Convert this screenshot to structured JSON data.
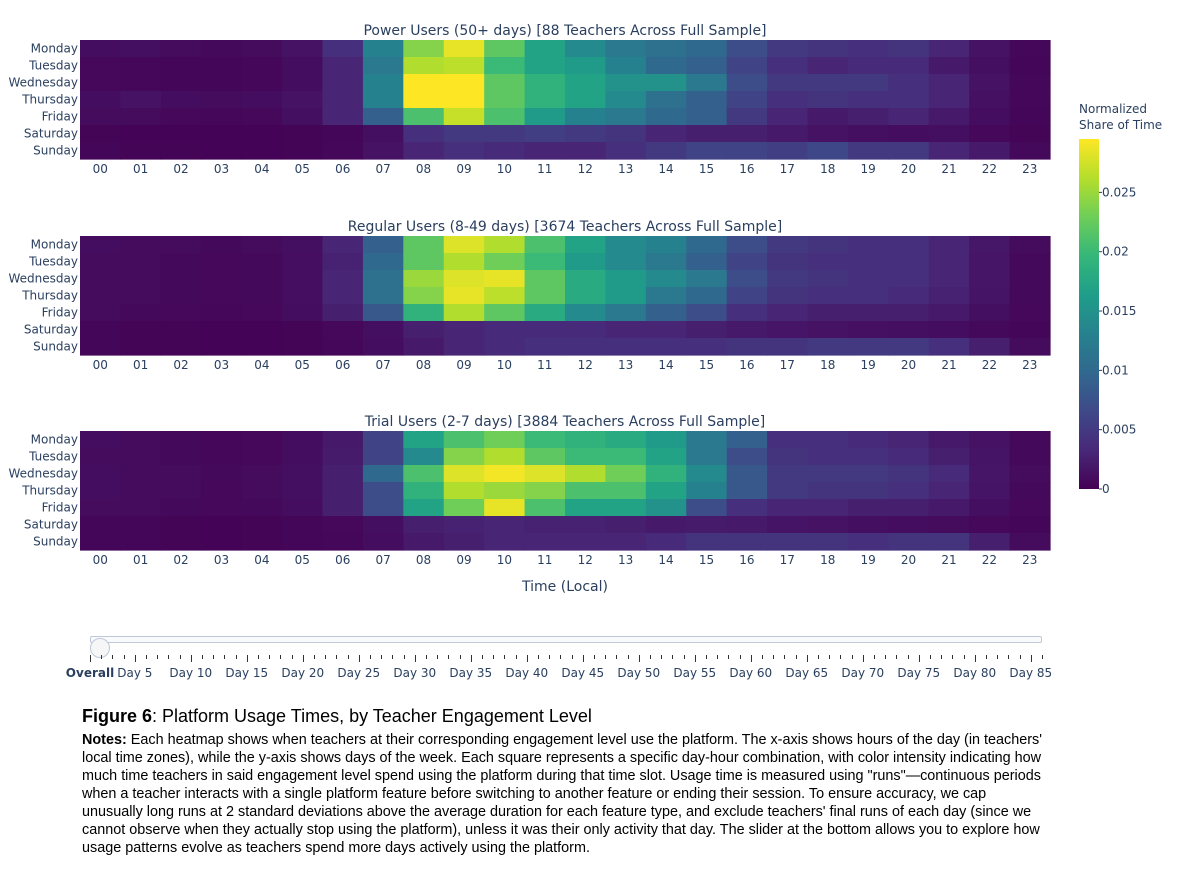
{
  "figure": {
    "label": "Figure 6",
    "title": ": Platform Usage Times, by Teacher Engagement Level",
    "notes_label": "Notes:",
    "notes_text": " Each heatmap shows when teachers at their corresponding engagement level use the platform. The x-axis shows hours of the day (in teachers' local time zones), while the y-axis shows days of the week. Each square represents a specific day-hour combination, with color intensity indicating how much time teachers in said engagement level spend using the platform during that time slot. Usage time is measured using \"runs\"—continuous periods when a teacher interacts with a single platform feature before switching to another feature or ending their session. To ensure accuracy, we cap unusually long runs at 2 standard deviations above the average duration for each feature type, and exclude teachers' final runs of each day (since we cannot observe when they actually stop using the platform), unless it was their only activity that day. The slider at the bottom allows you to explore how usage patterns evolve as teachers spend more days actively using the platform."
  },
  "slider": {
    "active_index": 0,
    "labels": [
      "Overall",
      "Day 5",
      "Day 10",
      "Day 15",
      "Day 20",
      "Day 25",
      "Day 30",
      "Day 35",
      "Day 40",
      "Day 45",
      "Day 50",
      "Day 55",
      "Day 60",
      "Day 65",
      "Day 70",
      "Day 75",
      "Day 80",
      "Day 85"
    ],
    "tick_count": 86
  },
  "chart_data": {
    "type": "heatmap",
    "x_title": "Time (Local)",
    "hours": [
      "00",
      "01",
      "02",
      "03",
      "04",
      "05",
      "06",
      "07",
      "08",
      "09",
      "10",
      "11",
      "12",
      "13",
      "14",
      "15",
      "16",
      "17",
      "18",
      "19",
      "20",
      "21",
      "22",
      "23"
    ],
    "days": [
      "Monday",
      "Tuesday",
      "Wednesday",
      "Thursday",
      "Friday",
      "Saturday",
      "Sunday"
    ],
    "colorbar": {
      "title_line1": "Normalized",
      "title_line2": "Share of Time",
      "colorscale": "Viridis",
      "zmin": 0,
      "zmax": 0.0295,
      "ticks": [
        0,
        0.005,
        0.01,
        0.015,
        0.02,
        0.025
      ],
      "tick_labels": [
        "0",
        "0.005",
        "0.01",
        "0.015",
        "0.02",
        "0.025"
      ]
    },
    "panels": [
      {
        "title": "Power Users (50+ days) [88 Teachers Across Full Sample]",
        "z": [
          [
            0.001,
            0.0012,
            0.0008,
            0.0007,
            0.0009,
            0.0015,
            0.004,
            0.013,
            0.024,
            0.0285,
            0.022,
            0.017,
            0.014,
            0.012,
            0.011,
            0.01,
            0.007,
            0.005,
            0.0045,
            0.004,
            0.0045,
            0.003,
            0.0015,
            0.0005
          ],
          [
            0.0006,
            0.0005,
            0.0004,
            0.0004,
            0.0005,
            0.001,
            0.003,
            0.012,
            0.026,
            0.0265,
            0.02,
            0.017,
            0.016,
            0.013,
            0.01,
            0.009,
            0.006,
            0.004,
            0.003,
            0.0035,
            0.0035,
            0.002,
            0.0012,
            0.0004
          ],
          [
            0.0006,
            0.0005,
            0.0004,
            0.0004,
            0.0005,
            0.001,
            0.003,
            0.013,
            0.0295,
            0.0295,
            0.022,
            0.019,
            0.017,
            0.015,
            0.015,
            0.012,
            0.007,
            0.005,
            0.005,
            0.005,
            0.004,
            0.003,
            0.0014,
            0.0005
          ],
          [
            0.001,
            0.0015,
            0.001,
            0.0008,
            0.001,
            0.0015,
            0.003,
            0.013,
            0.0295,
            0.0295,
            0.022,
            0.019,
            0.017,
            0.014,
            0.011,
            0.009,
            0.006,
            0.004,
            0.0045,
            0.004,
            0.004,
            0.003,
            0.0013,
            0.0005
          ],
          [
            0.0008,
            0.0008,
            0.0006,
            0.0005,
            0.0006,
            0.0012,
            0.003,
            0.009,
            0.021,
            0.027,
            0.021,
            0.016,
            0.013,
            0.012,
            0.01,
            0.009,
            0.005,
            0.003,
            0.002,
            0.0025,
            0.003,
            0.002,
            0.001,
            0.0004
          ],
          [
            0.0003,
            0.0002,
            0.0002,
            0.0002,
            0.0002,
            0.0003,
            0.0004,
            0.0012,
            0.004,
            0.005,
            0.005,
            0.0055,
            0.005,
            0.0045,
            0.003,
            0.0025,
            0.0025,
            0.002,
            0.0015,
            0.0012,
            0.001,
            0.0012,
            0.0006,
            0.0003
          ],
          [
            0.0004,
            0.0003,
            0.0003,
            0.0002,
            0.0002,
            0.0003,
            0.0005,
            0.0015,
            0.003,
            0.004,
            0.0035,
            0.003,
            0.003,
            0.004,
            0.005,
            0.006,
            0.006,
            0.0055,
            0.0065,
            0.005,
            0.005,
            0.003,
            0.002,
            0.0007
          ]
        ]
      },
      {
        "title": "Regular Users (8-49 days) [3674 Teachers Across Full Sample]",
        "z": [
          [
            0.001,
            0.0009,
            0.0008,
            0.0007,
            0.0008,
            0.0012,
            0.003,
            0.009,
            0.022,
            0.028,
            0.026,
            0.021,
            0.017,
            0.014,
            0.013,
            0.01,
            0.007,
            0.005,
            0.0045,
            0.004,
            0.004,
            0.003,
            0.0018,
            0.0008
          ],
          [
            0.0009,
            0.0008,
            0.0007,
            0.0006,
            0.0007,
            0.0011,
            0.0028,
            0.01,
            0.022,
            0.026,
            0.023,
            0.02,
            0.016,
            0.014,
            0.012,
            0.009,
            0.006,
            0.0045,
            0.004,
            0.004,
            0.004,
            0.003,
            0.0017,
            0.0007
          ],
          [
            0.0009,
            0.0008,
            0.0007,
            0.0006,
            0.0007,
            0.0011,
            0.003,
            0.011,
            0.025,
            0.028,
            0.0285,
            0.022,
            0.018,
            0.016,
            0.014,
            0.012,
            0.007,
            0.005,
            0.0045,
            0.004,
            0.004,
            0.003,
            0.0017,
            0.0007
          ],
          [
            0.0009,
            0.0008,
            0.0007,
            0.0006,
            0.0007,
            0.0011,
            0.003,
            0.011,
            0.024,
            0.0285,
            0.0265,
            0.022,
            0.018,
            0.016,
            0.012,
            0.01,
            0.006,
            0.0045,
            0.004,
            0.004,
            0.0035,
            0.0028,
            0.0016,
            0.0007
          ],
          [
            0.0008,
            0.0007,
            0.0006,
            0.0005,
            0.0006,
            0.001,
            0.0025,
            0.008,
            0.019,
            0.026,
            0.022,
            0.018,
            0.014,
            0.012,
            0.009,
            0.007,
            0.004,
            0.003,
            0.0025,
            0.0025,
            0.0025,
            0.002,
            0.0012,
            0.0006
          ],
          [
            0.0004,
            0.0003,
            0.0003,
            0.0002,
            0.0002,
            0.0003,
            0.0006,
            0.0012,
            0.0025,
            0.003,
            0.0035,
            0.0035,
            0.0035,
            0.003,
            0.003,
            0.0025,
            0.002,
            0.0017,
            0.0015,
            0.0013,
            0.0012,
            0.001,
            0.0007,
            0.0004
          ],
          [
            0.0004,
            0.0003,
            0.0003,
            0.0002,
            0.0002,
            0.0003,
            0.0005,
            0.001,
            0.002,
            0.003,
            0.0035,
            0.004,
            0.004,
            0.004,
            0.004,
            0.004,
            0.0045,
            0.0045,
            0.005,
            0.005,
            0.005,
            0.004,
            0.0025,
            0.0009
          ]
        ]
      },
      {
        "title": "Trial Users (2-7 days) [3884 Teachers Across Full Sample]",
        "z": [
          [
            0.001,
            0.0008,
            0.0007,
            0.0005,
            0.0006,
            0.001,
            0.002,
            0.006,
            0.017,
            0.021,
            0.023,
            0.02,
            0.019,
            0.018,
            0.016,
            0.012,
            0.009,
            0.004,
            0.004,
            0.0035,
            0.003,
            0.002,
            0.0015,
            0.0007
          ],
          [
            0.0009,
            0.0008,
            0.0007,
            0.0005,
            0.0006,
            0.001,
            0.0022,
            0.006,
            0.014,
            0.024,
            0.026,
            0.022,
            0.02,
            0.02,
            0.017,
            0.012,
            0.007,
            0.0045,
            0.004,
            0.004,
            0.0035,
            0.0025,
            0.0016,
            0.0007
          ],
          [
            0.001,
            0.0009,
            0.0008,
            0.0007,
            0.0008,
            0.0012,
            0.0025,
            0.01,
            0.021,
            0.028,
            0.029,
            0.028,
            0.026,
            0.023,
            0.019,
            0.014,
            0.008,
            0.005,
            0.005,
            0.005,
            0.0045,
            0.0035,
            0.0017,
            0.0008
          ],
          [
            0.001,
            0.0009,
            0.0008,
            0.0006,
            0.0008,
            0.0012,
            0.0025,
            0.007,
            0.019,
            0.026,
            0.025,
            0.024,
            0.021,
            0.021,
            0.017,
            0.013,
            0.008,
            0.005,
            0.0045,
            0.0045,
            0.004,
            0.003,
            0.0016,
            0.0007
          ],
          [
            0.0009,
            0.0008,
            0.0007,
            0.0006,
            0.0007,
            0.001,
            0.0025,
            0.007,
            0.017,
            0.023,
            0.0285,
            0.021,
            0.017,
            0.017,
            0.015,
            0.007,
            0.004,
            0.003,
            0.003,
            0.0025,
            0.0025,
            0.002,
            0.0012,
            0.0006
          ],
          [
            0.0004,
            0.0004,
            0.0003,
            0.0002,
            0.0003,
            0.0004,
            0.0006,
            0.0012,
            0.0025,
            0.0028,
            0.003,
            0.0028,
            0.0028,
            0.0025,
            0.002,
            0.0022,
            0.002,
            0.0016,
            0.0014,
            0.0012,
            0.001,
            0.0009,
            0.0006,
            0.0004
          ],
          [
            0.0004,
            0.0004,
            0.0003,
            0.0002,
            0.0003,
            0.0004,
            0.0005,
            0.001,
            0.002,
            0.0025,
            0.003,
            0.003,
            0.003,
            0.003,
            0.0035,
            0.0045,
            0.0045,
            0.0045,
            0.0045,
            0.004,
            0.0045,
            0.0045,
            0.0025,
            0.0008
          ]
        ]
      }
    ]
  }
}
